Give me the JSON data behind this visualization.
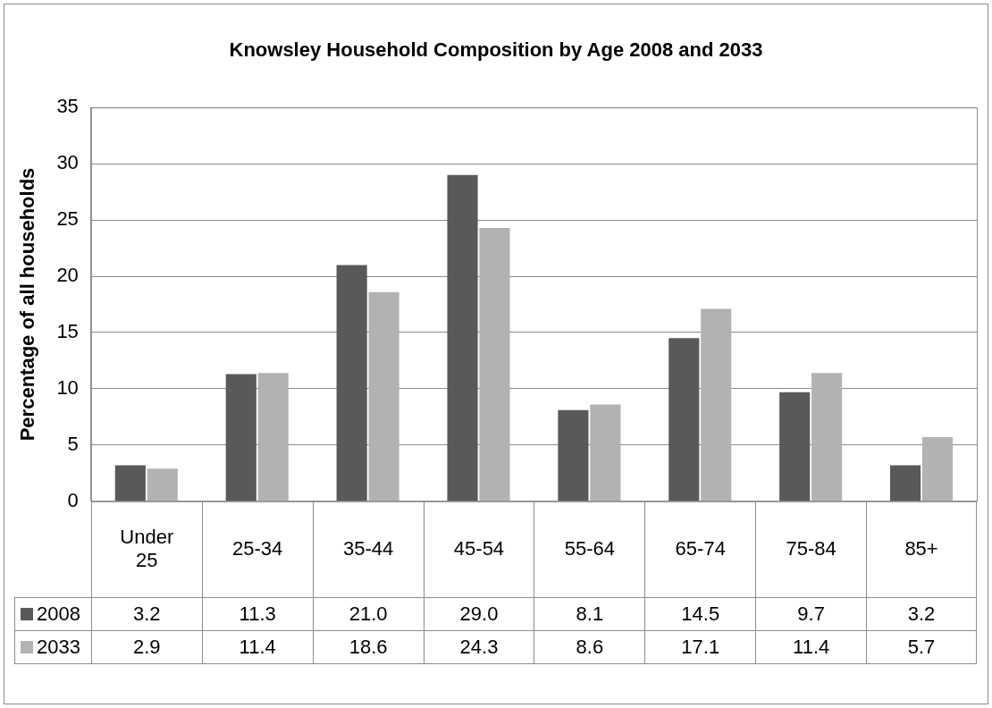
{
  "chart_data": {
    "type": "bar",
    "title": "Knowsley Household Composition by Age 2008 and 2033",
    "ylabel": "Percentage of all households",
    "categories": [
      "Under 25",
      "25-34",
      "35-44",
      "45-54",
      "55-64",
      "65-74",
      "75-84",
      "85+"
    ],
    "series": [
      {
        "name": "2008",
        "color": "#595959",
        "values": [
          3.2,
          11.3,
          21.0,
          29.0,
          8.1,
          14.5,
          9.7,
          3.2
        ],
        "value_labels": [
          "3.2",
          "11.3",
          "21.0",
          "29.0",
          "8.1",
          "14.5",
          "9.7",
          "3.2"
        ]
      },
      {
        "name": "2033",
        "color": "#b2b2b2",
        "values": [
          2.9,
          11.4,
          18.6,
          24.3,
          8.6,
          17.1,
          11.4,
          5.7
        ],
        "value_labels": [
          "2.9",
          "11.4",
          "18.6",
          "24.3",
          "8.6",
          "17.1",
          "11.4",
          "5.7"
        ]
      }
    ],
    "ylim": [
      0,
      35
    ],
    "yticks": [
      0,
      5,
      10,
      15,
      20,
      25,
      30,
      35
    ],
    "grid": "y",
    "legend": "bottom"
  }
}
